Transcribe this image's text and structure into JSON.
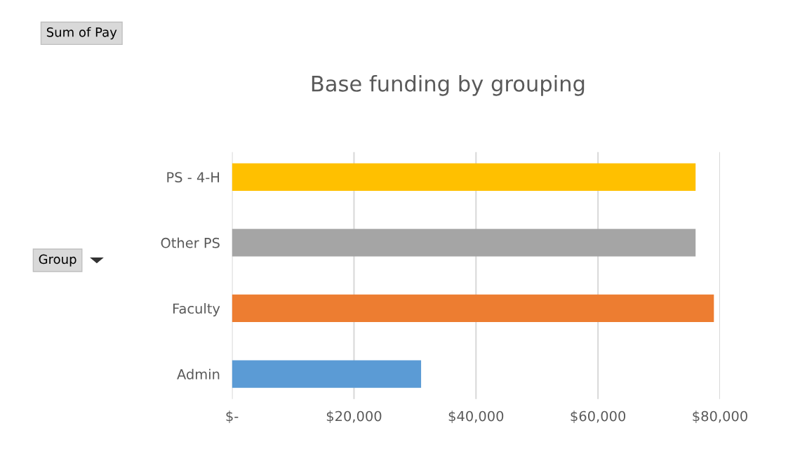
{
  "chart_data": {
    "type": "bar",
    "orientation": "horizontal",
    "title": "Base funding by grouping",
    "categories": [
      "PS - 4-H",
      "Other PS",
      "Faculty",
      "Admin"
    ],
    "values": [
      76000,
      76000,
      79000,
      31000
    ],
    "colors": [
      "#ffc000",
      "#a5a5a5",
      "#ed7d31",
      "#5b9bd5"
    ],
    "xlim": [
      0,
      80000
    ],
    "xticks": [
      {
        "value": 0,
        "label": "$-"
      },
      {
        "value": 20000,
        "label": "$20,000"
      },
      {
        "value": 40000,
        "label": "$40,000"
      },
      {
        "value": 60000,
        "label": "$60,000"
      },
      {
        "value": 80000,
        "label": "$80,000"
      }
    ],
    "grid": "x",
    "legend": false,
    "annotations": [
      "Sum of Pay",
      "Group"
    ]
  }
}
